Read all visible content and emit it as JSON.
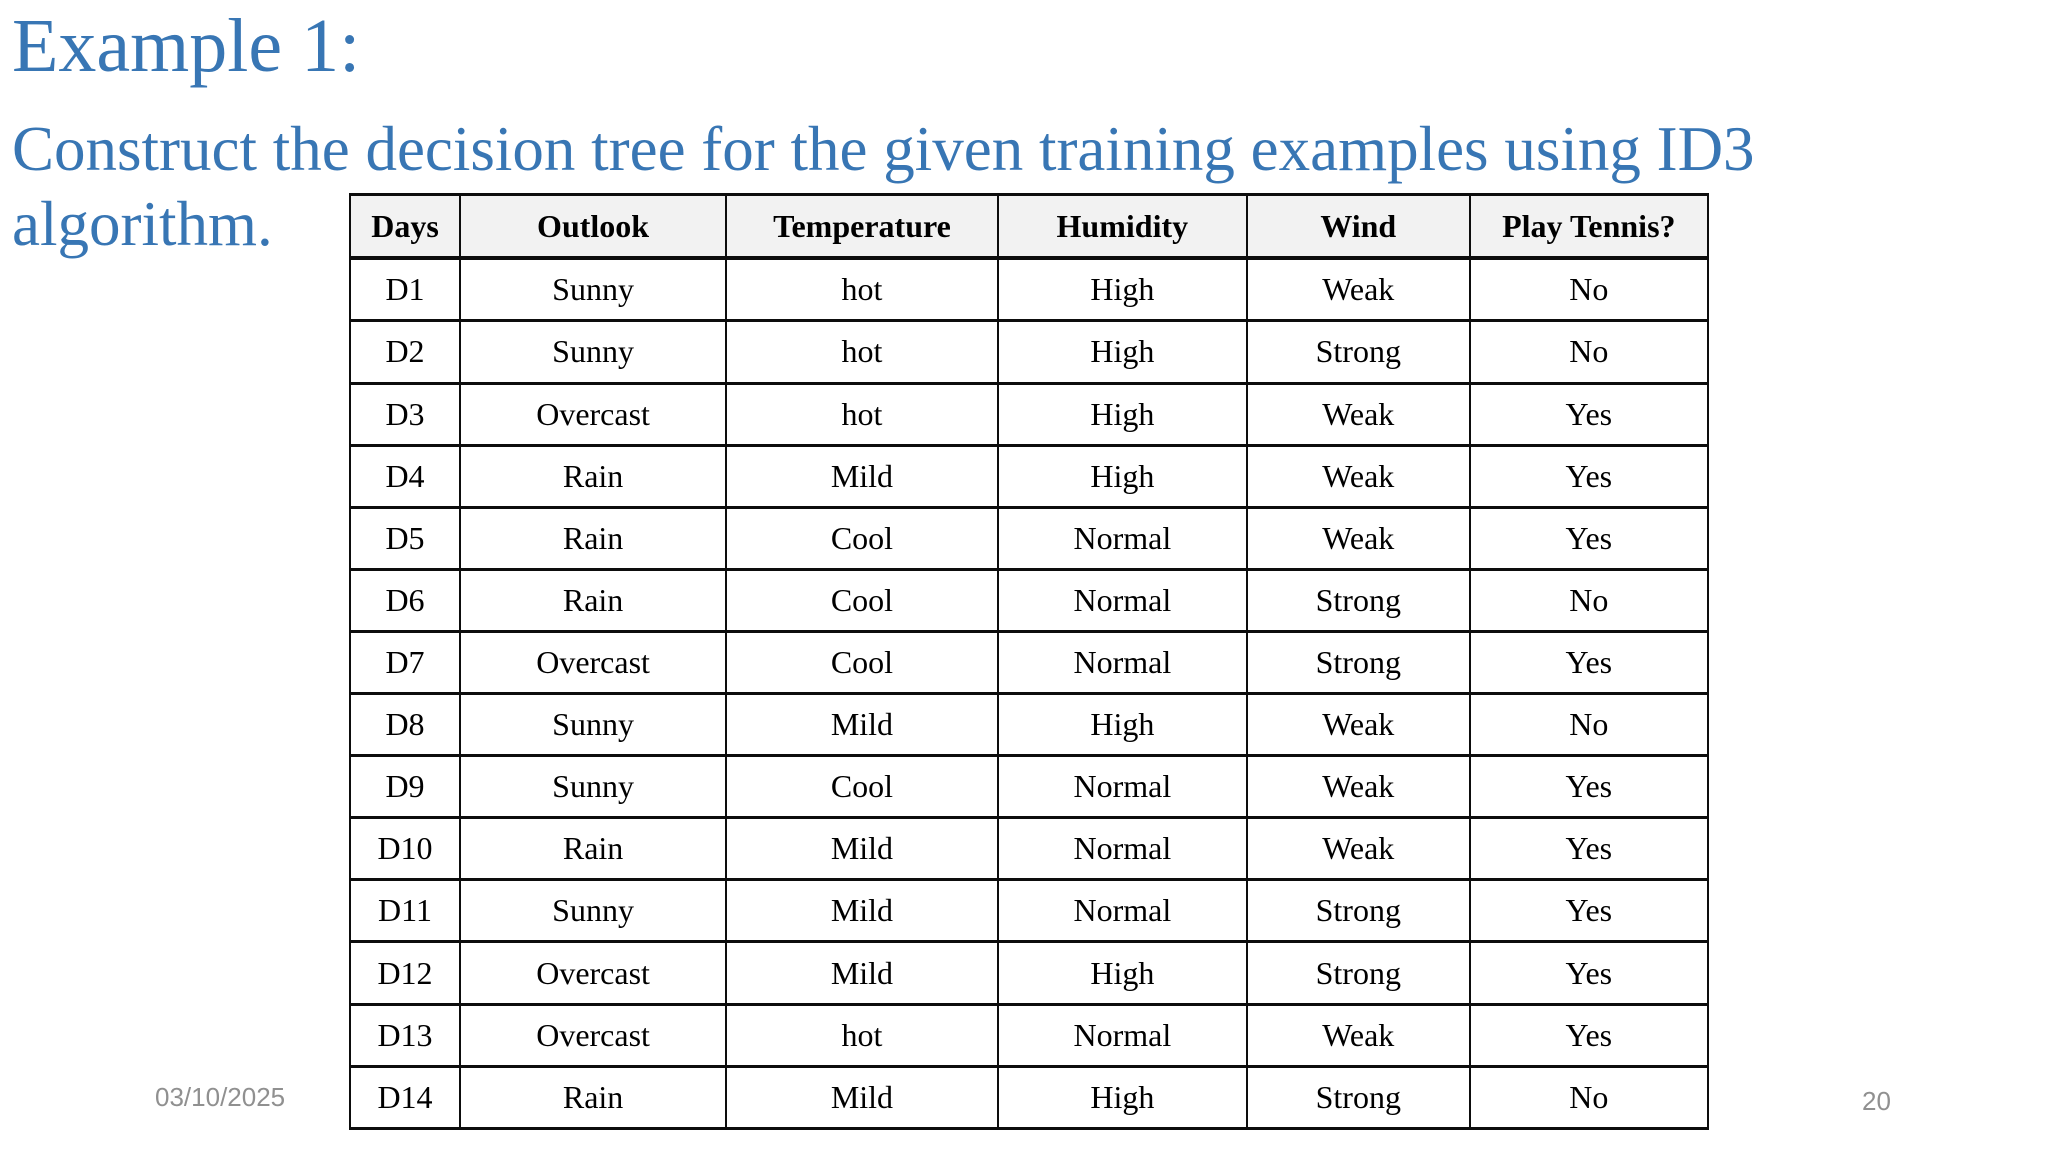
{
  "slide": {
    "title": "Example 1:",
    "subtitle_lines": [
      "Construct the decision tree for the given training examples using ID3",
      "algorithm."
    ]
  },
  "table": {
    "headers": [
      "Days",
      "Outlook",
      "Temperature",
      "Humidity",
      "Wind",
      "Play Tennis?"
    ],
    "rows": [
      [
        "D1",
        "Sunny",
        "hot",
        "High",
        "Weak",
        "No"
      ],
      [
        "D2",
        "Sunny",
        "hot",
        "High",
        "Strong",
        "No"
      ],
      [
        "D3",
        "Overcast",
        "hot",
        "High",
        "Weak",
        "Yes"
      ],
      [
        "D4",
        "Rain",
        "Mild",
        "High",
        "Weak",
        "Yes"
      ],
      [
        "D5",
        "Rain",
        "Cool",
        "Normal",
        "Weak",
        "Yes"
      ],
      [
        "D6",
        "Rain",
        "Cool",
        "Normal",
        "Strong",
        "No"
      ],
      [
        "D7",
        "Overcast",
        "Cool",
        "Normal",
        "Strong",
        "Yes"
      ],
      [
        "D8",
        "Sunny",
        "Mild",
        "High",
        "Weak",
        "No"
      ],
      [
        "D9",
        "Sunny",
        "Cool",
        "Normal",
        "Weak",
        "Yes"
      ],
      [
        "D10",
        "Rain",
        "Mild",
        "Normal",
        "Weak",
        "Yes"
      ],
      [
        "D11",
        "Sunny",
        "Mild",
        "Normal",
        "Strong",
        "Yes"
      ],
      [
        "D12",
        "Overcast",
        "Mild",
        "High",
        "Strong",
        "Yes"
      ],
      [
        "D13",
        "Overcast",
        "hot",
        "Normal",
        "Weak",
        "Yes"
      ],
      [
        "D14",
        "Rain",
        "Mild",
        "High",
        "Strong",
        "No"
      ]
    ]
  },
  "footer": {
    "date": "03/10/2025",
    "page_number": "20"
  },
  "colors": {
    "title_blue": "#3876B4",
    "table_header_bg": "#F2F2F2",
    "footer_gray": "#909090",
    "table_border": "#0d0d0d"
  }
}
